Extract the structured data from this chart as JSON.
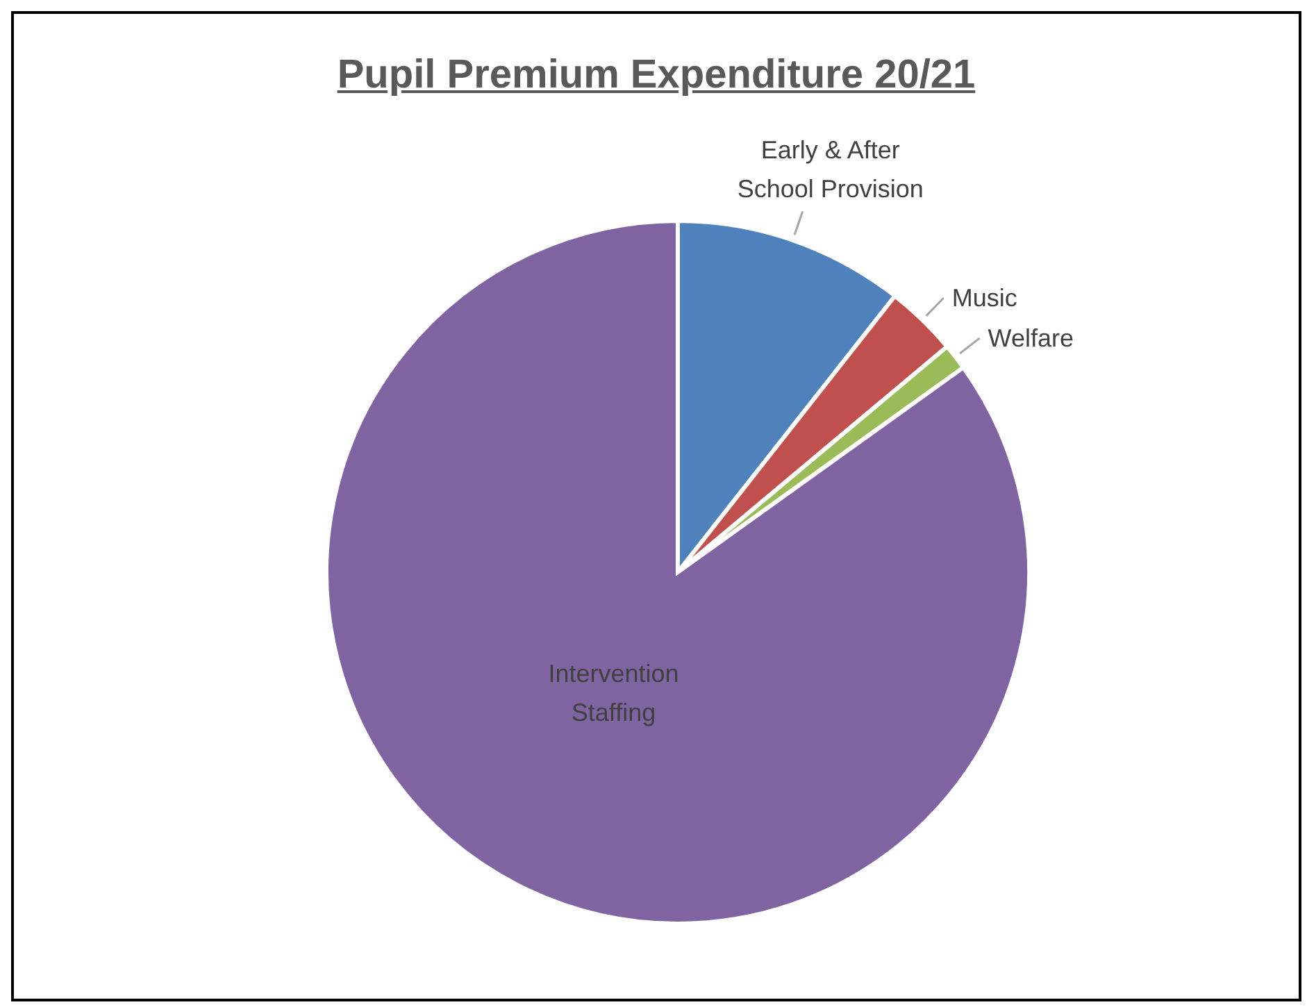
{
  "chart_data": {
    "type": "pie",
    "title": "Pupil Premium Expenditure 20/21",
    "categories": [
      "Early & After School Provision",
      "Music",
      "Welfare",
      "Intervention Staffing"
    ],
    "values": [
      10.6,
      3.3,
      1.2,
      84.9
    ],
    "colors": [
      "#4f81bd",
      "#c0504d",
      "#9bbb59",
      "#8064a2"
    ],
    "legend": false
  }
}
